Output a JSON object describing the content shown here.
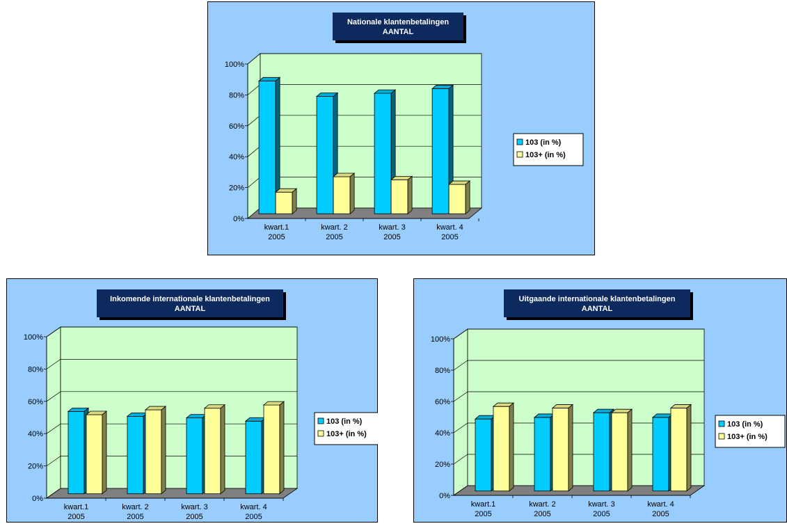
{
  "colors": {
    "panel_bg": "#99ccff",
    "plot_bg": "#ccffcc",
    "floor": "#808080",
    "title_bg": "#0d2a5e",
    "series_103": "#00ccff",
    "series_103_plus": "#ffff99"
  },
  "chart_data": [
    {
      "type": "bar",
      "title": "Nationale klantenbetalingen",
      "subtitle": "AANTAL",
      "categories": [
        [
          "kwart.1",
          "2005"
        ],
        [
          "kwart. 2",
          "2005"
        ],
        [
          "kwart. 3",
          "2005"
        ],
        [
          "kwart. 4",
          "2005"
        ]
      ],
      "series": [
        {
          "name": "103 (in %)",
          "values": [
            86,
            76,
            78,
            81
          ]
        },
        {
          "name": "103+ (in %)",
          "values": [
            14,
            24,
            22,
            19
          ]
        }
      ],
      "yticks": [
        "0%",
        "20%",
        "40%",
        "60%",
        "80%",
        "100%"
      ],
      "ylim": [
        0,
        100
      ],
      "grid": true,
      "legend_position": "right"
    },
    {
      "type": "bar",
      "title": "Inkomende internationale klantenbetalingen",
      "subtitle": "AANTAL",
      "categories": [
        [
          "kwart.1",
          "2005"
        ],
        [
          "kwart. 2",
          "2005"
        ],
        [
          "kwart. 3",
          "2005"
        ],
        [
          "kwart. 4",
          "2005"
        ]
      ],
      "series": [
        {
          "name": "103 (in %)",
          "values": [
            51,
            48,
            47,
            45
          ]
        },
        {
          "name": "103+ (in %)",
          "values": [
            49,
            52,
            53,
            55
          ]
        }
      ],
      "yticks": [
        "0%",
        "20%",
        "40%",
        "60%",
        "80%",
        "100%"
      ],
      "ylim": [
        0,
        100
      ],
      "grid": true,
      "legend_position": "right"
    },
    {
      "type": "bar",
      "title": "Uitgaande internationale klantenbetalingen",
      "subtitle": "AANTAL",
      "categories": [
        [
          "kwart.1",
          "2005"
        ],
        [
          "kwart. 2",
          "2005"
        ],
        [
          "kwart. 3",
          "2005"
        ],
        [
          "kwart. 4",
          "2005"
        ]
      ],
      "series": [
        {
          "name": "103 (in %)",
          "values": [
            46,
            47,
            50,
            47
          ]
        },
        {
          "name": "103+ (in %)",
          "values": [
            54,
            53,
            50,
            53
          ]
        }
      ],
      "yticks": [
        "0%",
        "20%",
        "40%",
        "60%",
        "80%",
        "100%"
      ],
      "ylim": [
        0,
        100
      ],
      "grid": true,
      "legend_position": "right"
    }
  ]
}
